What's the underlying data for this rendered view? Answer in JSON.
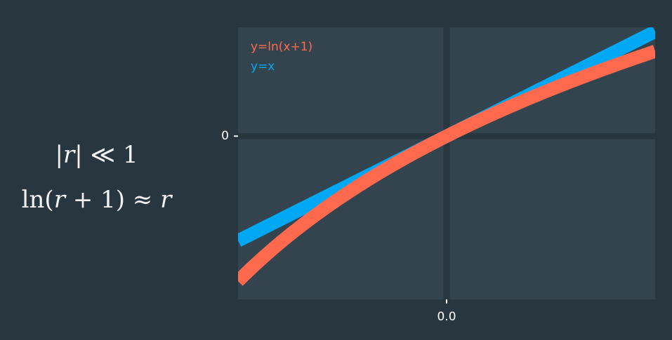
{
  "formulas": {
    "condition": {
      "pre": "|",
      "var": "r",
      "post": "| ≪ 1"
    },
    "approximation": {
      "pre": "ln(",
      "var1": "r",
      "mid": " + 1) ≈ ",
      "var2": "r"
    }
  },
  "colors": {
    "background": "#283640",
    "panel": "#34444f",
    "zero_line": "#283640",
    "ln_series": "#ff6a4f",
    "x_series": "#00a8f3"
  },
  "chart_data": {
    "type": "line",
    "title": "",
    "xlabel": "",
    "ylabel": "",
    "xlim": [
      -0.5,
      0.5
    ],
    "ylim": [
      -0.78,
      0.52
    ],
    "x_ticks": [
      {
        "value": 0,
        "label": "0.0"
      }
    ],
    "y_ticks": [
      {
        "value": 0,
        "label": "0"
      }
    ],
    "legend_position": "top-left",
    "series": [
      {
        "name": "y=ln(x+1)",
        "function": "ln(x+1)",
        "color": "#ff6a4f"
      },
      {
        "name": "y=x",
        "function": "x",
        "color": "#00a8f3"
      }
    ]
  }
}
